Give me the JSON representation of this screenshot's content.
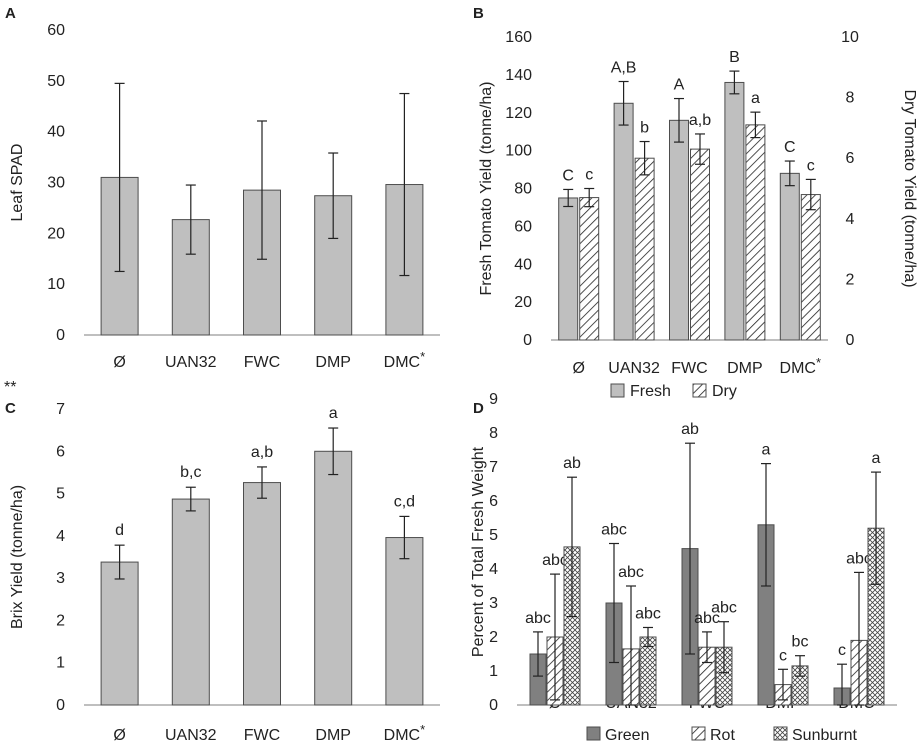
{
  "colors": {
    "bar": "#bfbfbf",
    "bar_dark": "#808080",
    "stroke": "#4d4d4d",
    "text": "#222222"
  },
  "chart_data": [
    {
      "panel": "A",
      "type": "bar",
      "categories": [
        "Ø",
        "UAN32",
        "FWC",
        "DMP",
        "DMC"
      ],
      "category_superscripts": [
        "",
        "",
        "",
        "",
        "*"
      ],
      "values": [
        31,
        22.7,
        28.5,
        27.4,
        29.6
      ],
      "errors": [
        18.5,
        6.8,
        13.6,
        8.4,
        17.9
      ],
      "ylabel": "Leaf SPAD",
      "ylim": [
        0,
        60
      ],
      "yticks": [
        0,
        10,
        20,
        30,
        40,
        50,
        60
      ],
      "footnote": "**"
    },
    {
      "panel": "B",
      "type": "bar",
      "categories": [
        "Ø",
        "UAN32",
        "FWC",
        "DMP",
        "DMC"
      ],
      "category_superscripts": [
        "",
        "",
        "",
        "",
        "*"
      ],
      "series": [
        {
          "name": "Fresh",
          "axis": "left",
          "values": [
            75,
            125,
            116,
            136,
            88
          ],
          "errors": [
            4.5,
            11.5,
            11.5,
            6,
            6.5
          ],
          "labels": [
            "C",
            "A,B",
            "A",
            "B",
            "C"
          ]
        },
        {
          "name": "Dry",
          "axis": "right",
          "values": [
            4.7,
            6.0,
            6.3,
            7.1,
            4.8
          ],
          "errors": [
            0.3,
            0.55,
            0.5,
            0.42,
            0.5
          ],
          "labels": [
            "c",
            "b",
            "a,b",
            "a",
            "c"
          ]
        }
      ],
      "ylabel": "Fresh Tomato Yield (tonne/ha)",
      "ylabel_right": "Dry Tomato Yield (tonne/ha)",
      "ylim": [
        0,
        160
      ],
      "yticks": [
        0,
        20,
        40,
        60,
        80,
        100,
        120,
        140,
        160
      ],
      "ylim_right": [
        0,
        10
      ],
      "yticks_right": [
        0,
        2,
        4,
        6,
        8,
        10
      ],
      "legend": [
        "Fresh",
        "Dry"
      ]
    },
    {
      "panel": "C",
      "type": "bar",
      "categories": [
        "Ø",
        "UAN32",
        "FWC",
        "DMP",
        "DMC"
      ],
      "category_superscripts": [
        "",
        "",
        "",
        "",
        "*"
      ],
      "values": [
        3.38,
        4.87,
        5.26,
        6.0,
        3.96
      ],
      "errors": [
        0.4,
        0.28,
        0.37,
        0.55,
        0.5
      ],
      "labels": [
        "d",
        "b,c",
        "a,b",
        "a",
        "c,d"
      ],
      "ylabel": "Brix Yield (tonne/ha)",
      "ylim": [
        0,
        7
      ],
      "yticks": [
        0,
        1,
        2,
        3,
        4,
        5,
        6,
        7
      ]
    },
    {
      "panel": "D",
      "type": "bar",
      "categories": [
        "Ø",
        "UAN32",
        "FWC",
        "DMP",
        "DMC"
      ],
      "category_superscripts": [
        "",
        "",
        "",
        "",
        "*"
      ],
      "series": [
        {
          "name": "Green",
          "values": [
            1.5,
            3.0,
            4.6,
            5.3,
            0.5
          ],
          "errors": [
            0.65,
            1.75,
            3.1,
            1.8,
            0.7
          ],
          "labels": [
            "abc",
            "abc",
            "ab",
            "a",
            "c"
          ]
        },
        {
          "name": "Rot",
          "values": [
            2.0,
            1.65,
            1.7,
            0.6,
            1.9
          ],
          "errors": [
            1.85,
            1.85,
            0.45,
            0.45,
            2.0
          ],
          "labels": [
            "abc",
            "abc",
            "abc",
            "c",
            "abc"
          ]
        },
        {
          "name": "Sunburnt",
          "values": [
            4.65,
            2.0,
            1.7,
            1.15,
            5.2
          ],
          "errors": [
            2.05,
            0.28,
            0.75,
            0.3,
            1.65
          ],
          "labels": [
            "ab",
            "abc",
            "abc",
            "bc",
            "a"
          ]
        }
      ],
      "ylabel": "Percent of Total Fresh Weight",
      "ylim": [
        0,
        9
      ],
      "yticks": [
        0,
        1,
        2,
        3,
        4,
        5,
        6,
        7,
        8,
        9
      ],
      "legend": [
        "Green",
        "Rot",
        "Sunburnt"
      ]
    }
  ]
}
